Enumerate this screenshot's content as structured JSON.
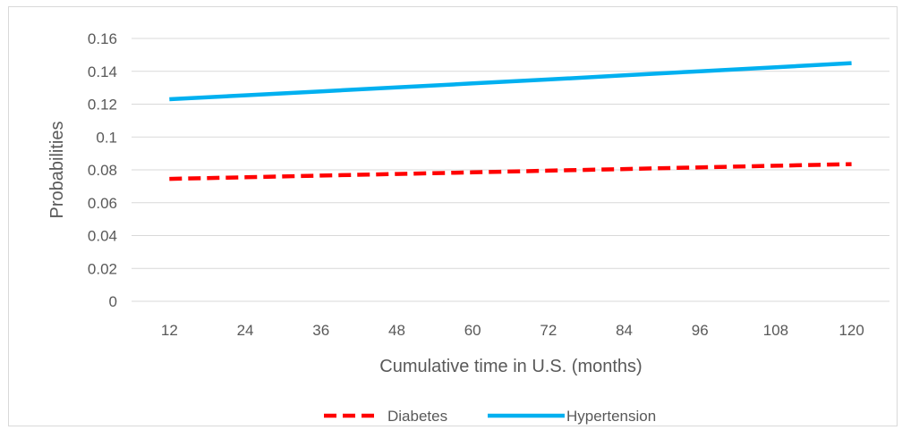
{
  "chart_data": {
    "type": "line",
    "title": "",
    "xlabel": "Cumulative time in U.S. (months)",
    "ylabel": "Probabilities",
    "categories": [
      "12",
      "24",
      "36",
      "48",
      "60",
      "72",
      "84",
      "96",
      "108",
      "120"
    ],
    "x": [
      12,
      24,
      36,
      48,
      60,
      72,
      84,
      96,
      108,
      120
    ],
    "ylim": [
      0,
      0.16
    ],
    "yticks": [
      "0",
      "0.02",
      "0.04",
      "0.06",
      "0.08",
      "0.1",
      "0.12",
      "0.14",
      "0.16"
    ],
    "grid": true,
    "legend_position": "bottom",
    "series": [
      {
        "name": "Diabetes",
        "color": "#ff0000",
        "line_style": "dashed",
        "values": [
          0.0745,
          0.0755,
          0.0765,
          0.0775,
          0.0785,
          0.0795,
          0.0805,
          0.0815,
          0.0825,
          0.0835
        ]
      },
      {
        "name": "Hypertension",
        "color": "#00b0f0",
        "line_style": "solid",
        "values": [
          0.123,
          0.1254,
          0.1278,
          0.1302,
          0.1326,
          0.135,
          0.1375,
          0.14,
          0.1425,
          0.145
        ]
      }
    ]
  }
}
